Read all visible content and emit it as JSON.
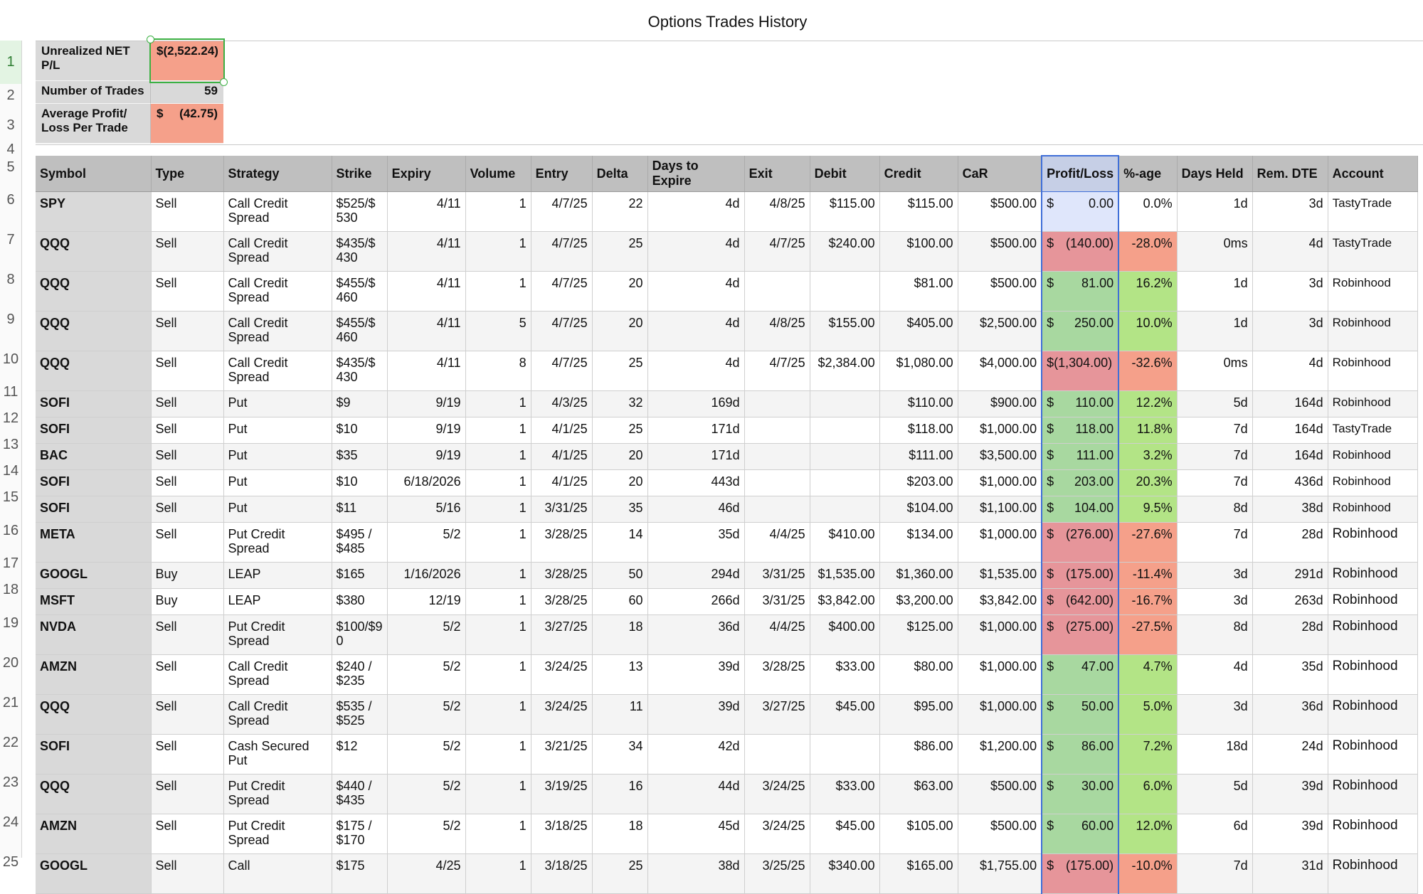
{
  "title": "Options Trades History",
  "row_numbers": [
    "1",
    "2",
    "3",
    "4",
    "5",
    "6",
    "7",
    "8",
    "9",
    "10",
    "11",
    "12",
    "13",
    "14",
    "15",
    "16",
    "17",
    "18",
    "19",
    "20",
    "21",
    "22",
    "23",
    "24",
    "25"
  ],
  "summary": {
    "unrealized_label": "Unrealized NET P/L",
    "unrealized_value": "$(2,522.24)",
    "trades_label": "Number of Trades",
    "trades_value": "59",
    "avg_label": "Average Profit/ Loss Per Trade",
    "avg_currency": "$",
    "avg_value": "(42.75)"
  },
  "columns": [
    "Symbol",
    "Type",
    "Strategy",
    "Strike",
    "Expiry",
    "Volume",
    "Entry",
    "Delta",
    "Days to Expire",
    "Exit",
    "Debit",
    "Credit",
    "CaR",
    "Profit/Loss",
    "%-age",
    "Days Held",
    "Rem. DTE",
    "Account"
  ],
  "rows": [
    {
      "symbol": "SPY",
      "type": "Sell",
      "strategy": "Call Credit Spread",
      "strike": "$525/$ 530",
      "expiry": "4/11",
      "volume": "1",
      "entry": "4/7/25",
      "delta": "22",
      "dte": "4d",
      "exit": "4/8/25",
      "debit": "$115.00",
      "credit": "$115.00",
      "car": "$500.00",
      "pl": "0.00",
      "pct": "0.0%",
      "held": "1d",
      "rem": "3d",
      "account": "TastyTrade",
      "status": "zero"
    },
    {
      "symbol": "QQQ",
      "type": "Sell",
      "strategy": "Call Credit Spread",
      "strike": "$435/$ 430",
      "expiry": "4/11",
      "volume": "1",
      "entry": "4/7/25",
      "delta": "25",
      "dte": "4d",
      "exit": "4/7/25",
      "debit": "$240.00",
      "credit": "$100.00",
      "car": "$500.00",
      "pl": "(140.00)",
      "pct": "-28.0%",
      "held": "0ms",
      "rem": "4d",
      "account": "TastyTrade",
      "status": "neg"
    },
    {
      "symbol": "QQQ",
      "type": "Sell",
      "strategy": "Call Credit Spread",
      "strike": "$455/$ 460",
      "expiry": "4/11",
      "volume": "1",
      "entry": "4/7/25",
      "delta": "20",
      "dte": "4d",
      "exit": "",
      "debit": "",
      "credit": "$81.00",
      "car": "$500.00",
      "pl": "81.00",
      "pct": "16.2%",
      "held": "1d",
      "rem": "3d",
      "account": "Robinhood",
      "status": "pos"
    },
    {
      "symbol": "QQQ",
      "type": "Sell",
      "strategy": "Call Credit Spread",
      "strike": "$455/$ 460",
      "expiry": "4/11",
      "volume": "5",
      "entry": "4/7/25",
      "delta": "20",
      "dte": "4d",
      "exit": "4/8/25",
      "debit": "$155.00",
      "credit": "$405.00",
      "car": "$2,500.00",
      "pl": "250.00",
      "pct": "10.0%",
      "held": "1d",
      "rem": "3d",
      "account": "Robinhood",
      "status": "pos"
    },
    {
      "symbol": "QQQ",
      "type": "Sell",
      "strategy": "Call Credit Spread",
      "strike": "$435/$ 430",
      "expiry": "4/11",
      "volume": "8",
      "entry": "4/7/25",
      "delta": "25",
      "dte": "4d",
      "exit": "4/7/25",
      "debit": "$2,384.00",
      "credit": "$1,080.00",
      "car": "$4,000.00",
      "pl": "$(1,304.00)",
      "pct": "-32.6%",
      "held": "0ms",
      "rem": "4d",
      "account": "Robinhood",
      "status": "neg",
      "nocur": true
    },
    {
      "symbol": "SOFI",
      "type": "Sell",
      "strategy": "Put",
      "strike": "$9",
      "expiry": "9/19",
      "volume": "1",
      "entry": "4/3/25",
      "delta": "32",
      "dte": "169d",
      "exit": "",
      "debit": "",
      "credit": "$110.00",
      "car": "$900.00",
      "pl": "110.00",
      "pct": "12.2%",
      "held": "5d",
      "rem": "164d",
      "account": "Robinhood",
      "status": "pos"
    },
    {
      "symbol": "SOFI",
      "type": "Sell",
      "strategy": "Put",
      "strike": "$10",
      "expiry": "9/19",
      "volume": "1",
      "entry": "4/1/25",
      "delta": "25",
      "dte": "171d",
      "exit": "",
      "debit": "",
      "credit": "$118.00",
      "car": "$1,000.00",
      "pl": "118.00",
      "pct": "11.8%",
      "held": "7d",
      "rem": "164d",
      "account": "TastyTrade",
      "status": "pos"
    },
    {
      "symbol": "BAC",
      "type": "Sell",
      "strategy": "Put",
      "strike": "$35",
      "expiry": "9/19",
      "volume": "1",
      "entry": "4/1/25",
      "delta": "20",
      "dte": "171d",
      "exit": "",
      "debit": "",
      "credit": "$111.00",
      "car": "$3,500.00",
      "pl": "111.00",
      "pct": "3.2%",
      "held": "7d",
      "rem": "164d",
      "account": "Robinhood",
      "status": "pos"
    },
    {
      "symbol": "SOFI",
      "type": "Sell",
      "strategy": "Put",
      "strike": "$10",
      "expiry": "6/18/2026",
      "volume": "1",
      "entry": "4/1/25",
      "delta": "20",
      "dte": "443d",
      "exit": "",
      "debit": "",
      "credit": "$203.00",
      "car": "$1,000.00",
      "pl": "203.00",
      "pct": "20.3%",
      "held": "7d",
      "rem": "436d",
      "account": "Robinhood",
      "status": "pos"
    },
    {
      "symbol": "SOFI",
      "type": "Sell",
      "strategy": "Put",
      "strike": "$11",
      "expiry": "5/16",
      "volume": "1",
      "entry": "3/31/25",
      "delta": "35",
      "dte": "46d",
      "exit": "",
      "debit": "",
      "credit": "$104.00",
      "car": "$1,100.00",
      "pl": "104.00",
      "pct": "9.5%",
      "held": "8d",
      "rem": "38d",
      "account": "Robinhood",
      "status": "pos"
    },
    {
      "symbol": "META",
      "type": "Sell",
      "strategy": "Put Credit Spread",
      "strike": "$495 / $485",
      "expiry": "5/2",
      "volume": "1",
      "entry": "3/28/25",
      "delta": "14",
      "dte": "35d",
      "exit": "4/4/25",
      "debit": "$410.00",
      "credit": "$134.00",
      "car": "$1,000.00",
      "pl": "(276.00)",
      "pct": "-27.6%",
      "held": "7d",
      "rem": "28d",
      "account": "Robinhood",
      "status": "neg"
    },
    {
      "symbol": "GOOGL",
      "type": "Buy",
      "strategy": "LEAP",
      "strike": "$165",
      "expiry": "1/16/2026",
      "volume": "1",
      "entry": "3/28/25",
      "delta": "50",
      "dte": "294d",
      "exit": "3/31/25",
      "debit": "$1,535.00",
      "credit": "$1,360.00",
      "car": "$1,535.00",
      "pl": "(175.00)",
      "pct": "-11.4%",
      "held": "3d",
      "rem": "291d",
      "account": "Robinhood",
      "status": "neg"
    },
    {
      "symbol": "MSFT",
      "type": "Buy",
      "strategy": "LEAP",
      "strike": "$380",
      "expiry": "12/19",
      "volume": "1",
      "entry": "3/28/25",
      "delta": "60",
      "dte": "266d",
      "exit": "3/31/25",
      "debit": "$3,842.00",
      "credit": "$3,200.00",
      "car": "$3,842.00",
      "pl": "(642.00)",
      "pct": "-16.7%",
      "held": "3d",
      "rem": "263d",
      "account": "Robinhood",
      "status": "neg"
    },
    {
      "symbol": "NVDA",
      "type": "Sell",
      "strategy": "Put Credit Spread",
      "strike": "$100/$9 0",
      "expiry": "5/2",
      "volume": "1",
      "entry": "3/27/25",
      "delta": "18",
      "dte": "36d",
      "exit": "4/4/25",
      "debit": "$400.00",
      "credit": "$125.00",
      "car": "$1,000.00",
      "pl": "(275.00)",
      "pct": "-27.5%",
      "held": "8d",
      "rem": "28d",
      "account": "Robinhood",
      "status": "neg"
    },
    {
      "symbol": "AMZN",
      "type": "Sell",
      "strategy": "Call Credit Spread",
      "strike": "$240 / $235",
      "expiry": "5/2",
      "volume": "1",
      "entry": "3/24/25",
      "delta": "13",
      "dte": "39d",
      "exit": "3/28/25",
      "debit": "$33.00",
      "credit": "$80.00",
      "car": "$1,000.00",
      "pl": "47.00",
      "pct": "4.7%",
      "held": "4d",
      "rem": "35d",
      "account": "Robinhood",
      "status": "pos"
    },
    {
      "symbol": "QQQ",
      "type": "Sell",
      "strategy": "Call Credit Spread",
      "strike": "$535 / $525",
      "expiry": "5/2",
      "volume": "1",
      "entry": "3/24/25",
      "delta": "11",
      "dte": "39d",
      "exit": "3/27/25",
      "debit": "$45.00",
      "credit": "$95.00",
      "car": "$1,000.00",
      "pl": "50.00",
      "pct": "5.0%",
      "held": "3d",
      "rem": "36d",
      "account": "Robinhood",
      "status": "pos"
    },
    {
      "symbol": "SOFI",
      "type": "Sell",
      "strategy": "Cash Secured Put",
      "strike": "$12",
      "expiry": "5/2",
      "volume": "1",
      "entry": "3/21/25",
      "delta": "34",
      "dte": "42d",
      "exit": "",
      "debit": "",
      "credit": "$86.00",
      "car": "$1,200.00",
      "pl": "86.00",
      "pct": "7.2%",
      "held": "18d",
      "rem": "24d",
      "account": "Robinhood",
      "status": "pos"
    },
    {
      "symbol": "QQQ",
      "type": "Sell",
      "strategy": "Put Credit Spread",
      "strike": "$440 / $435",
      "expiry": "5/2",
      "volume": "1",
      "entry": "3/19/25",
      "delta": "16",
      "dte": "44d",
      "exit": "3/24/25",
      "debit": "$33.00",
      "credit": "$63.00",
      "car": "$500.00",
      "pl": "30.00",
      "pct": "6.0%",
      "held": "5d",
      "rem": "39d",
      "account": "Robinhood",
      "status": "pos"
    },
    {
      "symbol": "AMZN",
      "type": "Sell",
      "strategy": "Put Credit Spread",
      "strike": "$175 / $170",
      "expiry": "5/2",
      "volume": "1",
      "entry": "3/18/25",
      "delta": "18",
      "dte": "45d",
      "exit": "3/24/25",
      "debit": "$45.00",
      "credit": "$105.00",
      "car": "$500.00",
      "pl": "60.00",
      "pct": "12.0%",
      "held": "6d",
      "rem": "39d",
      "account": "Robinhood",
      "status": "pos"
    },
    {
      "symbol": "GOOGL",
      "type": "Sell",
      "strategy": "Call",
      "strike": "$175",
      "expiry": "4/25",
      "volume": "1",
      "entry": "3/18/25",
      "delta": "25",
      "dte": "38d",
      "exit": "3/25/25",
      "debit": "$340.00",
      "credit": "$165.00",
      "car": "$1,755.00",
      "pl": "(175.00)",
      "pct": "-10.0%",
      "held": "7d",
      "rem": "31d",
      "account": "Robinhood",
      "status": "neg"
    }
  ]
}
